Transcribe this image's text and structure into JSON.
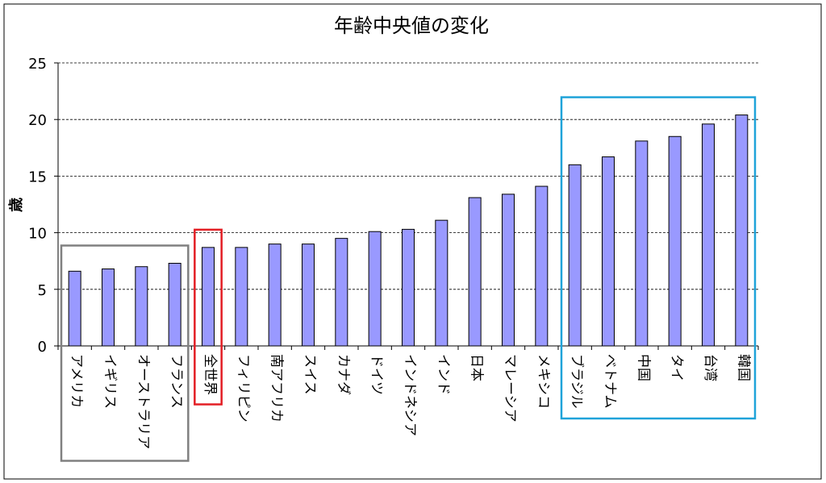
{
  "chart_data": {
    "type": "bar",
    "title": "年齢中央値の変化",
    "ylabel": "歳",
    "xlabel": "",
    "ylim": [
      0,
      25
    ],
    "yticks": [
      0,
      5,
      10,
      15,
      20,
      25
    ],
    "grid": "horizontal dashed",
    "categories": [
      "アメリカ",
      "イギリス",
      "オーストラリア",
      "フランス",
      "全世界",
      "フィリピン",
      "南アフリカ",
      "スイス",
      "カナダ",
      "ドイツ",
      "インドネシア",
      "インド",
      "日本",
      "マレーシア",
      "メキシコ",
      "ブラジル",
      "ベトナム",
      "中国",
      "タイ",
      "台湾",
      "韓国"
    ],
    "values": [
      6.6,
      6.8,
      7.0,
      7.3,
      8.7,
      8.7,
      9.0,
      9.0,
      9.5,
      10.1,
      10.3,
      11.1,
      13.1,
      13.4,
      14.1,
      16.0,
      16.7,
      18.1,
      18.5,
      19.6,
      20.4
    ],
    "bar_color": "#9999ff",
    "highlight_groups": [
      {
        "name": "group-1",
        "from": 0,
        "to": 3,
        "color": "#808080"
      },
      {
        "name": "group-2",
        "from": 4,
        "to": 4,
        "color": "#e31e24"
      },
      {
        "name": "group-3",
        "from": 15,
        "to": 20,
        "color": "#1fa3d9"
      }
    ]
  }
}
